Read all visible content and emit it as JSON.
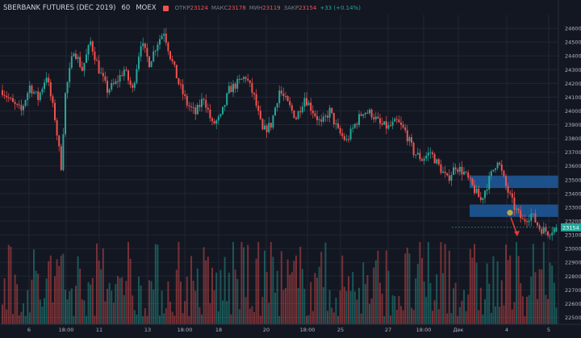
{
  "header": {
    "symbol": "SBERBANK FUTURES (DEC 2019)",
    "interval": "60",
    "exchange": "MOEX",
    "open_label": "ОТКР",
    "open_value": "23124",
    "high_label": "МАКС",
    "high_value": "23178",
    "low_label": "МИН",
    "low_value": "23119",
    "close_label": "ЗАКР",
    "close_value": "23154",
    "change": "+33 (+0.14%)"
  },
  "colors": {
    "background": "#131722",
    "grid": "#232632",
    "up": "#26a69a",
    "down": "#ef5350",
    "zone": "#1e5a9c",
    "arrow": "#e53935",
    "marker": "#b9a74a"
  },
  "chart_data": {
    "type": "candlestick",
    "y_ticks": [
      "24600",
      "24500",
      "24400",
      "24300",
      "24200",
      "24100",
      "24000",
      "23900",
      "23800",
      "23700",
      "23600",
      "23500",
      "23400",
      "23300",
      "23200",
      "23100",
      "23000",
      "22900",
      "22800",
      "22700",
      "22600",
      "22500"
    ],
    "ylim": [
      22450,
      24700
    ],
    "current_price_label": "23154",
    "current_price": 23154,
    "x_ticks": [
      "6",
      "18:00",
      "11",
      "13",
      "18:00",
      "18",
      "20",
      "18:00",
      "25",
      "27",
      "18:00",
      "Дек",
      "4",
      "5"
    ],
    "price_path": [
      [
        0,
        24150
      ],
      [
        5,
        24050
      ],
      [
        9,
        24000
      ],
      [
        13,
        24180
      ],
      [
        17,
        24090
      ],
      [
        21,
        24260
      ],
      [
        25,
        23950
      ],
      [
        28,
        23600
      ],
      [
        30,
        24120
      ],
      [
        34,
        24450
      ],
      [
        38,
        24300
      ],
      [
        42,
        24500
      ],
      [
        46,
        24300
      ],
      [
        50,
        24150
      ],
      [
        54,
        24200
      ],
      [
        58,
        24300
      ],
      [
        62,
        24150
      ],
      [
        66,
        24500
      ],
      [
        70,
        24350
      ],
      [
        74,
        24500
      ],
      [
        77,
        24580
      ],
      [
        80,
        24400
      ],
      [
        84,
        24200
      ],
      [
        88,
        24050
      ],
      [
        92,
        23980
      ],
      [
        96,
        24100
      ],
      [
        100,
        23900
      ],
      [
        104,
        23950
      ],
      [
        108,
        24150
      ],
      [
        112,
        24200
      ],
      [
        116,
        24250
      ],
      [
        120,
        24100
      ],
      [
        124,
        23850
      ],
      [
        128,
        23900
      ],
      [
        132,
        24150
      ],
      [
        136,
        24050
      ],
      [
        140,
        23950
      ],
      [
        144,
        24100
      ],
      [
        148,
        24000
      ],
      [
        152,
        23900
      ],
      [
        156,
        24000
      ],
      [
        160,
        23850
      ],
      [
        164,
        23780
      ],
      [
        168,
        23900
      ],
      [
        172,
        24000
      ],
      [
        176,
        23980
      ],
      [
        180,
        23900
      ],
      [
        184,
        23880
      ],
      [
        188,
        23920
      ],
      [
        192,
        23850
      ],
      [
        196,
        23700
      ],
      [
        200,
        23650
      ],
      [
        204,
        23700
      ],
      [
        208,
        23600
      ],
      [
        212,
        23500
      ],
      [
        216,
        23600
      ],
      [
        220,
        23550
      ],
      [
        224,
        23450
      ],
      [
        228,
        23350
      ],
      [
        232,
        23500
      ],
      [
        236,
        23650
      ],
      [
        240,
        23450
      ],
      [
        244,
        23300
      ],
      [
        248,
        23200
      ],
      [
        252,
        23250
      ],
      [
        256,
        23150
      ],
      [
        260,
        23120
      ],
      [
        264,
        23154
      ]
    ],
    "zones": [
      {
        "low": 23440,
        "high": 23530
      },
      {
        "low": 23230,
        "high": 23320
      }
    ],
    "marker_price": 23260,
    "arrow": {
      "from": 23250,
      "to": 23100
    },
    "volume_bars": 265
  }
}
